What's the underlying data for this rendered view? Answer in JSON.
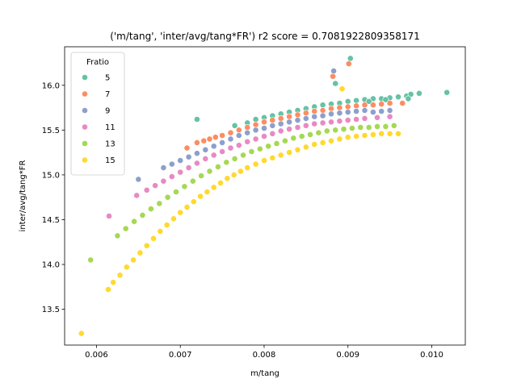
{
  "chart_data": {
    "type": "scatter",
    "title": "('m/tang', 'inter/avg/tang*FR') r2 score = 0.7081922809358171",
    "xlabel": "m/tang",
    "ylabel": "inter/avg/tang*FR",
    "xlim": [
      0.00562,
      0.0104
    ],
    "ylim": [
      13.1,
      16.43
    ],
    "xticks": [
      0.006,
      0.007,
      0.008,
      0.009,
      0.01
    ],
    "xtick_labels": [
      "0.006",
      "0.007",
      "0.008",
      "0.009",
      "0.010"
    ],
    "yticks": [
      13.5,
      14.0,
      14.5,
      15.0,
      15.5,
      16.0
    ],
    "ytick_labels": [
      "13.5",
      "14.0",
      "14.5",
      "15.0",
      "15.5",
      "16.0"
    ],
    "grid": false,
    "legend": {
      "title": "Fratio",
      "placement": "top-left"
    },
    "series": [
      {
        "name": "5",
        "color": "#66c2a5",
        "points": [
          [
            0.0072,
            15.62
          ],
          [
            0.00765,
            15.55
          ],
          [
            0.0078,
            15.58
          ],
          [
            0.0079,
            15.62
          ],
          [
            0.008,
            15.64
          ],
          [
            0.0081,
            15.66
          ],
          [
            0.0082,
            15.68
          ],
          [
            0.0083,
            15.7
          ],
          [
            0.0084,
            15.72
          ],
          [
            0.0085,
            15.74
          ],
          [
            0.0086,
            15.76
          ],
          [
            0.0087,
            15.78
          ],
          [
            0.0088,
            15.79
          ],
          [
            0.0089,
            15.8
          ],
          [
            0.009,
            15.82
          ],
          [
            0.0091,
            15.83
          ],
          [
            0.0092,
            15.84
          ],
          [
            0.0093,
            15.85
          ],
          [
            0.0094,
            15.85
          ],
          [
            0.0095,
            15.86
          ],
          [
            0.0096,
            15.87
          ],
          [
            0.0097,
            15.88
          ],
          [
            0.00975,
            15.9
          ],
          [
            0.00985,
            15.91
          ],
          [
            0.00903,
            16.3
          ],
          [
            0.00885,
            16.02
          ],
          [
            0.00972,
            15.85
          ],
          [
            0.01018,
            15.92
          ],
          [
            0.00945,
            15.84
          ],
          [
            0.00925,
            15.82
          ]
        ]
      },
      {
        "name": "7",
        "color": "#fc8d62",
        "points": [
          [
            0.00708,
            15.3
          ],
          [
            0.0072,
            15.36
          ],
          [
            0.00728,
            15.38
          ],
          [
            0.00735,
            15.4
          ],
          [
            0.00742,
            15.42
          ],
          [
            0.0075,
            15.44
          ],
          [
            0.0076,
            15.47
          ],
          [
            0.0077,
            15.5
          ],
          [
            0.0078,
            15.53
          ],
          [
            0.0079,
            15.56
          ],
          [
            0.008,
            15.59
          ],
          [
            0.0081,
            15.61
          ],
          [
            0.0082,
            15.63
          ],
          [
            0.0083,
            15.65
          ],
          [
            0.0084,
            15.67
          ],
          [
            0.0085,
            15.69
          ],
          [
            0.0086,
            15.71
          ],
          [
            0.0087,
            15.72
          ],
          [
            0.0088,
            15.74
          ],
          [
            0.0089,
            15.75
          ],
          [
            0.009,
            15.76
          ],
          [
            0.0091,
            15.77
          ],
          [
            0.0092,
            15.78
          ],
          [
            0.0093,
            15.78
          ],
          [
            0.0094,
            15.79
          ],
          [
            0.0095,
            15.8
          ],
          [
            0.00965,
            15.8
          ],
          [
            0.00901,
            16.24
          ],
          [
            0.00882,
            16.1
          ]
        ]
      },
      {
        "name": "9",
        "color": "#8da0cb",
        "points": [
          [
            0.0065,
            14.95
          ],
          [
            0.0068,
            15.08
          ],
          [
            0.0069,
            15.12
          ],
          [
            0.007,
            15.16
          ],
          [
            0.0071,
            15.2
          ],
          [
            0.0072,
            15.24
          ],
          [
            0.0073,
            15.28
          ],
          [
            0.0074,
            15.32
          ],
          [
            0.0075,
            15.36
          ],
          [
            0.0076,
            15.4
          ],
          [
            0.0077,
            15.44
          ],
          [
            0.0078,
            15.47
          ],
          [
            0.0079,
            15.5
          ],
          [
            0.008,
            15.52
          ],
          [
            0.0081,
            15.55
          ],
          [
            0.0082,
            15.57
          ],
          [
            0.0083,
            15.59
          ],
          [
            0.0084,
            15.61
          ],
          [
            0.0085,
            15.63
          ],
          [
            0.0086,
            15.65
          ],
          [
            0.0087,
            15.66
          ],
          [
            0.0088,
            15.68
          ],
          [
            0.0089,
            15.69
          ],
          [
            0.009,
            15.7
          ],
          [
            0.0091,
            15.71
          ],
          [
            0.0092,
            15.72
          ],
          [
            0.0093,
            15.7
          ],
          [
            0.0094,
            15.71
          ],
          [
            0.0095,
            15.72
          ],
          [
            0.00883,
            16.16
          ]
        ]
      },
      {
        "name": "11",
        "color": "#e78ac3",
        "points": [
          [
            0.00615,
            14.54
          ],
          [
            0.00648,
            14.77
          ],
          [
            0.0066,
            14.83
          ],
          [
            0.0067,
            14.88
          ],
          [
            0.0068,
            14.93
          ],
          [
            0.0069,
            14.98
          ],
          [
            0.007,
            15.03
          ],
          [
            0.0071,
            15.08
          ],
          [
            0.0072,
            15.13
          ],
          [
            0.0073,
            15.18
          ],
          [
            0.0074,
            15.22
          ],
          [
            0.0075,
            15.26
          ],
          [
            0.0076,
            15.3
          ],
          [
            0.0077,
            15.33
          ],
          [
            0.0078,
            15.37
          ],
          [
            0.0079,
            15.4
          ],
          [
            0.008,
            15.43
          ],
          [
            0.0081,
            15.46
          ],
          [
            0.0082,
            15.49
          ],
          [
            0.0083,
            15.51
          ],
          [
            0.0084,
            15.53
          ],
          [
            0.0085,
            15.55
          ],
          [
            0.0086,
            15.57
          ],
          [
            0.0087,
            15.58
          ],
          [
            0.0088,
            15.59
          ],
          [
            0.0089,
            15.6
          ],
          [
            0.009,
            15.61
          ],
          [
            0.0091,
            15.62
          ],
          [
            0.0092,
            15.63
          ],
          [
            0.00935,
            15.64
          ],
          [
            0.0095,
            15.65
          ]
        ]
      },
      {
        "name": "13",
        "color": "#a6d854",
        "points": [
          [
            0.00593,
            14.05
          ],
          [
            0.00625,
            14.32
          ],
          [
            0.00635,
            14.4
          ],
          [
            0.00645,
            14.48
          ],
          [
            0.00655,
            14.55
          ],
          [
            0.00665,
            14.62
          ],
          [
            0.00675,
            14.68
          ],
          [
            0.00685,
            14.75
          ],
          [
            0.00695,
            14.81
          ],
          [
            0.00705,
            14.87
          ],
          [
            0.00715,
            14.93
          ],
          [
            0.00725,
            14.99
          ],
          [
            0.00735,
            15.04
          ],
          [
            0.00745,
            15.09
          ],
          [
            0.00755,
            15.14
          ],
          [
            0.00765,
            15.18
          ],
          [
            0.00775,
            15.22
          ],
          [
            0.00785,
            15.26
          ],
          [
            0.00795,
            15.29
          ],
          [
            0.00805,
            15.32
          ],
          [
            0.00815,
            15.35
          ],
          [
            0.00825,
            15.38
          ],
          [
            0.00835,
            15.41
          ],
          [
            0.00845,
            15.43
          ],
          [
            0.00855,
            15.45
          ],
          [
            0.00865,
            15.47
          ],
          [
            0.00875,
            15.49
          ],
          [
            0.00885,
            15.5
          ],
          [
            0.00895,
            15.51
          ],
          [
            0.00905,
            15.52
          ],
          [
            0.00915,
            15.53
          ],
          [
            0.00925,
            15.53
          ],
          [
            0.00935,
            15.54
          ],
          [
            0.00945,
            15.54
          ],
          [
            0.00955,
            15.55
          ]
        ]
      },
      {
        "name": "15",
        "color": "#ffd92f",
        "points": [
          [
            0.00582,
            13.23
          ],
          [
            0.00614,
            13.72
          ],
          [
            0.0062,
            13.8
          ],
          [
            0.00628,
            13.88
          ],
          [
            0.00636,
            13.97
          ],
          [
            0.00644,
            14.05
          ],
          [
            0.00652,
            14.13
          ],
          [
            0.0066,
            14.21
          ],
          [
            0.00668,
            14.29
          ],
          [
            0.00676,
            14.37
          ],
          [
            0.00684,
            14.44
          ],
          [
            0.00692,
            14.51
          ],
          [
            0.007,
            14.58
          ],
          [
            0.00708,
            14.64
          ],
          [
            0.00716,
            14.7
          ],
          [
            0.00724,
            14.76
          ],
          [
            0.00732,
            14.81
          ],
          [
            0.0074,
            14.86
          ],
          [
            0.00748,
            14.91
          ],
          [
            0.00756,
            14.96
          ],
          [
            0.00764,
            15.0
          ],
          [
            0.00772,
            15.04
          ],
          [
            0.0078,
            15.08
          ],
          [
            0.0079,
            15.12
          ],
          [
            0.008,
            15.16
          ],
          [
            0.0081,
            15.19
          ],
          [
            0.0082,
            15.22
          ],
          [
            0.0083,
            15.25
          ],
          [
            0.0084,
            15.28
          ],
          [
            0.0085,
            15.31
          ],
          [
            0.0086,
            15.34
          ],
          [
            0.0087,
            15.36
          ],
          [
            0.0088,
            15.38
          ],
          [
            0.0089,
            15.4
          ],
          [
            0.009,
            15.42
          ],
          [
            0.0091,
            15.43
          ],
          [
            0.0092,
            15.44
          ],
          [
            0.0093,
            15.45
          ],
          [
            0.0094,
            15.46
          ],
          [
            0.0095,
            15.46
          ],
          [
            0.0096,
            15.46
          ],
          [
            0.00893,
            15.96
          ]
        ]
      }
    ]
  }
}
